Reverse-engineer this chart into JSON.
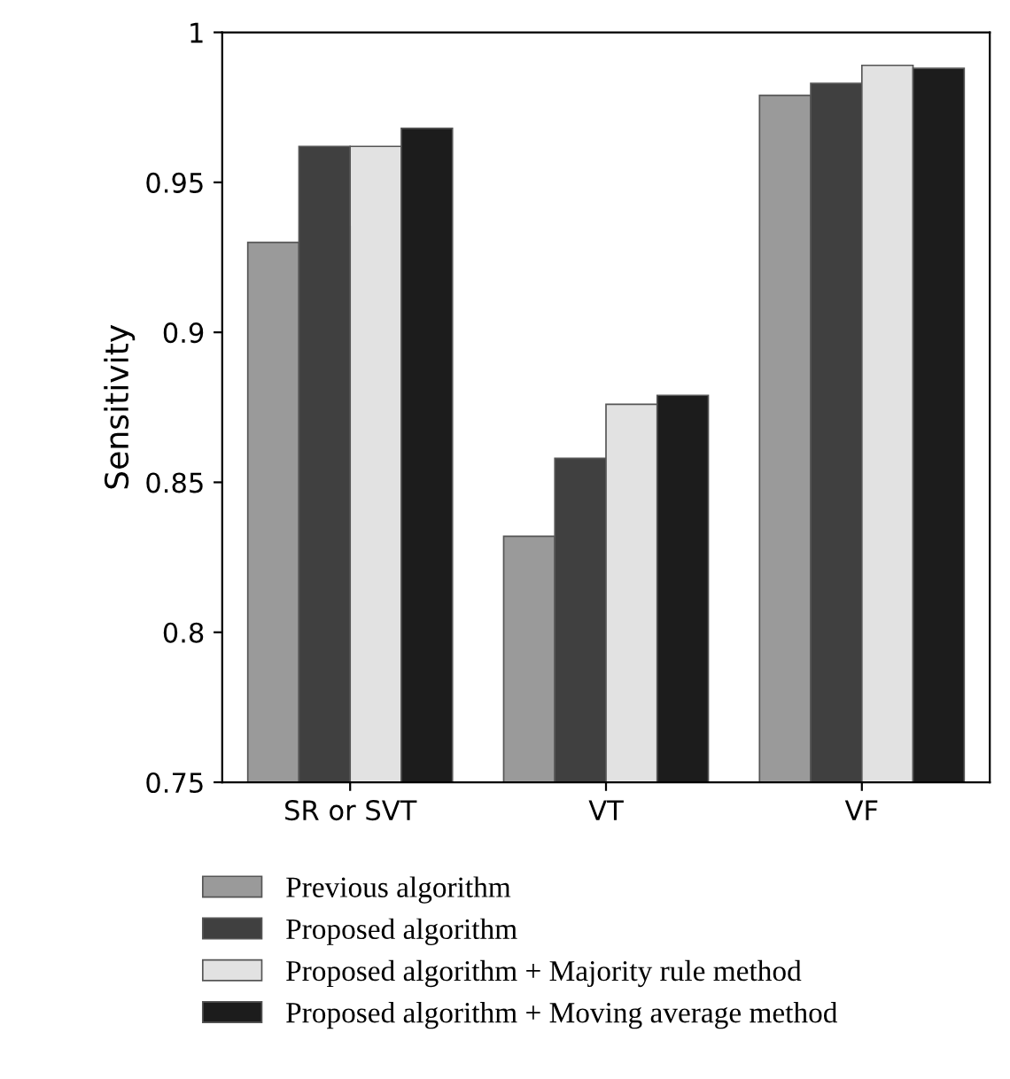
{
  "chart_data": {
    "type": "bar",
    "ylabel": "Sensitivity",
    "categories": [
      "SR or SVT",
      "VT",
      "VF"
    ],
    "series": [
      {
        "name": "Previous algorithm",
        "color": "#9a9a9a",
        "values": [
          0.93,
          0.832,
          0.979
        ]
      },
      {
        "name": "Proposed algorithm",
        "color": "#404040",
        "values": [
          0.962,
          0.858,
          0.983
        ]
      },
      {
        "name": "Proposed algorithm + Majority rule method",
        "color": "#e2e2e2",
        "values": [
          0.962,
          0.876,
          0.989
        ]
      },
      {
        "name": "Proposed algorithm + Moving average method",
        "color": "#1c1c1c",
        "values": [
          0.968,
          0.879,
          0.988
        ]
      }
    ],
    "ylim": [
      0.75,
      1
    ],
    "yticks": [
      0.75,
      0.8,
      0.85,
      0.9,
      0.95,
      1
    ],
    "grid": false,
    "legend": "bottom"
  }
}
